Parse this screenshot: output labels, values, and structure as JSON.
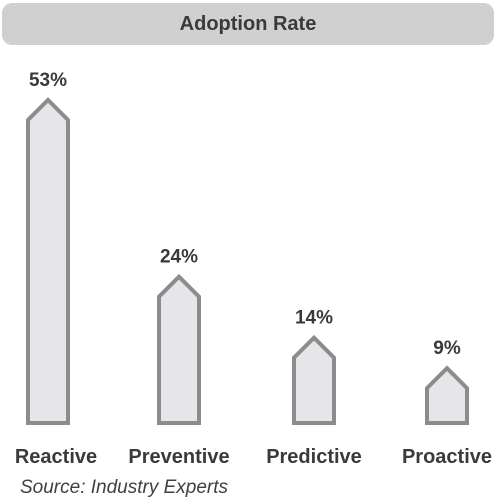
{
  "chart_data": {
    "type": "bar",
    "title": "Adoption Rate",
    "categories": [
      "Reactive",
      "Preventive",
      "Predictive",
      "Proactive"
    ],
    "values": [
      53,
      24,
      14,
      9
    ],
    "value_labels": [
      "53%",
      "24%",
      "14%",
      "9%"
    ],
    "unit": "%",
    "source": "Source: Industry Experts",
    "grid": false,
    "legend": "none",
    "colors": {
      "bar_fill": "#e6e6ea",
      "bar_stroke": "#8c8c8c",
      "text": "#3a3a3a",
      "title_bg": "#d0d0d1"
    }
  }
}
